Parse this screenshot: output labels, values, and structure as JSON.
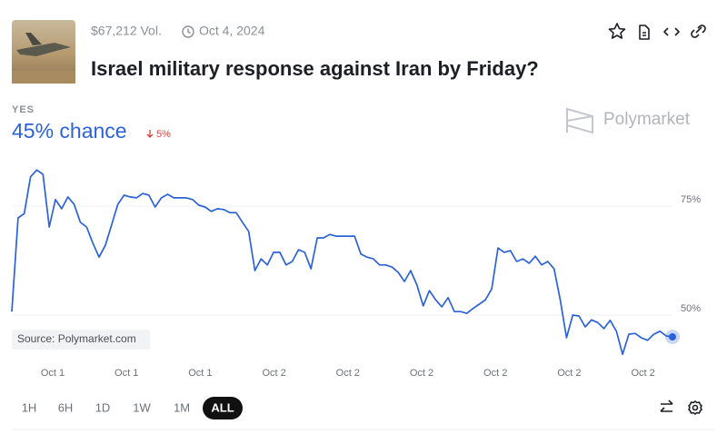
{
  "header": {
    "volume": "$67,212 Vol.",
    "date": "Oct 4, 2024",
    "title": "Israel military response against Iran by Friday?"
  },
  "outcome": {
    "label": "YES",
    "chance": "45% chance",
    "change": "5%"
  },
  "brand": "Polymarket",
  "source": "Source: Polymarket.com",
  "chart_data": {
    "type": "line",
    "color": "#2c62d8",
    "values": [
      50.8,
      72.3,
      73.3,
      81.7,
      83.3,
      82.3,
      70.2,
      76.5,
      74.4,
      77.1,
      75.4,
      71.3,
      70.2,
      66.5,
      63.3,
      66,
      70.6,
      75.4,
      77.5,
      77.1,
      76.9,
      77.9,
      77.5,
      74.8,
      76.9,
      77.7,
      76.9,
      76.9,
      76.9,
      76.5,
      75.2,
      74.8,
      73.8,
      74.4,
      74.2,
      73.5,
      73.5,
      71.3,
      69.2,
      60.2,
      62.9,
      61.5,
      64.4,
      64.4,
      61.5,
      62.3,
      65,
      64.4,
      60.6,
      67.7,
      67.7,
      68.5,
      68.1,
      68.1,
      68.1,
      68.1,
      64,
      63.3,
      62.9,
      61.5,
      61.5,
      61,
      59.8,
      57.7,
      60.2,
      56.9,
      52.1,
      55.6,
      53.5,
      51.9,
      54,
      50.8,
      50.8,
      50.4,
      51.5,
      52.5,
      53.5,
      56,
      65.4,
      64.4,
      64.8,
      62.3,
      62.9,
      61.9,
      63.5,
      61.5,
      62.3,
      60.6,
      53.5,
      44.8,
      50,
      49.8,
      47.3,
      48.9,
      48.3,
      46.9,
      48.8,
      46.3,
      41,
      45.6,
      45.8,
      44.8,
      44.2,
      45.6,
      46.3,
      45.2,
      45
    ],
    "ylim": [
      40,
      85
    ],
    "yticks": [
      {
        "value": 75,
        "label": "75%"
      },
      {
        "value": 50,
        "label": "50%"
      }
    ],
    "grid": true,
    "xtick_labels": [
      "Oct 1",
      "Oct 1",
      "Oct 1",
      "Oct 2",
      "Oct 2",
      "Oct 2",
      "Oct 2",
      "Oct 2",
      "Oct 2"
    ]
  },
  "ranges": [
    "1H",
    "6H",
    "1D",
    "1W",
    "1M",
    "ALL"
  ],
  "selected_range": "ALL"
}
